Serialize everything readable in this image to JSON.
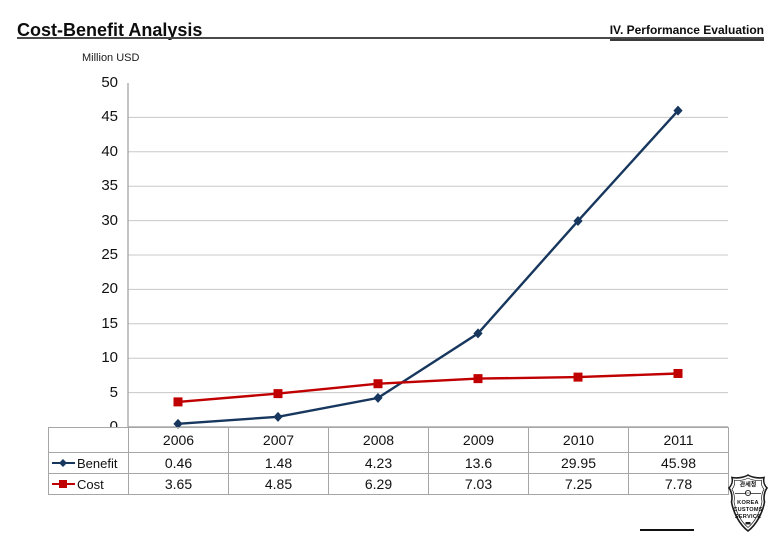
{
  "header": {
    "title": "Cost-Benefit Analysis",
    "section": "IV. Performance Evaluation"
  },
  "chart_data": {
    "type": "line",
    "units_label": "Million USD",
    "categories": [
      "2006",
      "2007",
      "2008",
      "2009",
      "2010",
      "2011"
    ],
    "series": [
      {
        "name": "Benefit",
        "color": "#17375E",
        "marker": "diamond",
        "values": [
          0.46,
          1.48,
          4.23,
          13.6,
          29.95,
          45.98
        ]
      },
      {
        "name": "Cost",
        "color": "#C00000",
        "marker": "square",
        "values": [
          3.65,
          4.85,
          6.29,
          7.03,
          7.25,
          7.78
        ]
      }
    ],
    "ylim": [
      0,
      50
    ],
    "ytick_step": 5,
    "grid": true,
    "gridline_color": "#c8c8c8",
    "axis_color": "#9b9b9b",
    "legend_position": "table-left",
    "data_table_shown": true
  },
  "footer": {
    "logo": {
      "text_korean": "관세청",
      "line1": "KOREA",
      "line2": "CUSTOMS",
      "line3": "SERVICE"
    }
  }
}
